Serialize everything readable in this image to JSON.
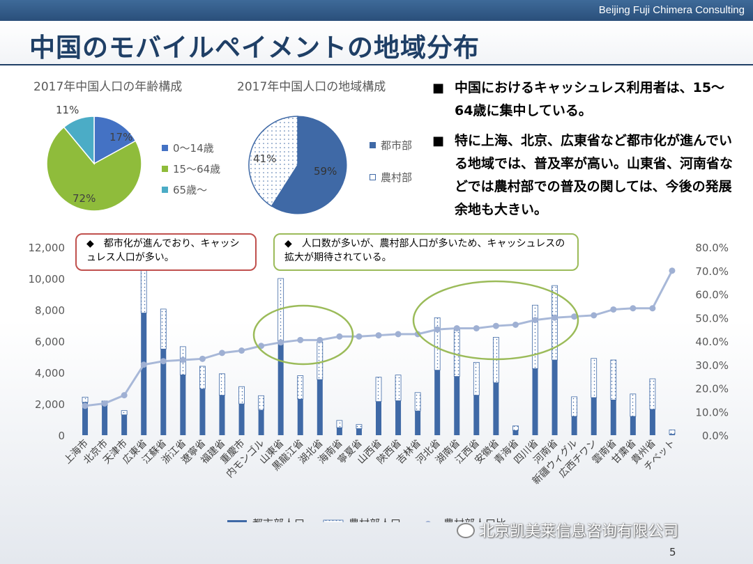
{
  "header": {
    "brand": "Beijing Fuji Chimera Consulting",
    "title": "中国のモバイルペイメントの地域分布"
  },
  "pie_age": {
    "title": "2017年中国人口の年齢構成",
    "slices": [
      {
        "label": "0～14歳",
        "value": 17,
        "text": "17%",
        "color": "#4472c4"
      },
      {
        "label": "15～64歳",
        "value": 72,
        "text": "72%",
        "color": "#8fbc3b"
      },
      {
        "label": "65歳～",
        "value": 11,
        "text": "11%",
        "color": "#4bacc6"
      }
    ]
  },
  "pie_region": {
    "title": "2017年中国人口の地域構成",
    "slices": [
      {
        "label": "都市部",
        "value": 59,
        "text": "59%",
        "color": "#3f69a6"
      },
      {
        "label": "農村部",
        "value": 41,
        "text": "41%",
        "color": "dotted"
      }
    ]
  },
  "bullets": [
    {
      "marker": "■",
      "text": "中国におけるキャッシュレス利用者は、15～64歳に集中している。"
    },
    {
      "marker": "■",
      "text": "特に上海、北京、広東省など都市化が進んでいる地域では、普及率が高い。山東省、河南省などでは農村部での普及の関しては、今後の発展余地も大きい。"
    }
  ],
  "callouts": [
    {
      "marker": "◆",
      "text": "都市化が進んでおり、キャッシュレス人口が多い。",
      "color": "#c0504d"
    },
    {
      "marker": "◆",
      "text": "人口数が多いが、農村部人口が多いため、キャッシュレスの拡大が期待されている。",
      "color": "#9bbb59"
    }
  ],
  "chart_data": {
    "type": "bar",
    "categories": [
      "上海市",
      "北京市",
      "天津市",
      "広東省",
      "江蘇省",
      "浙江省",
      "遼寧省",
      "福建省",
      "重慶市",
      "内モンゴル",
      "山東省",
      "黒龍江省",
      "湖北省",
      "海南省",
      "寧夏省",
      "山西省",
      "陝西省",
      "吉林省",
      "河北省",
      "湖南省",
      "江西省",
      "安徽省",
      "青海省",
      "四川省",
      "河南省",
      "新疆ウィグル",
      "広西チワン",
      "雲南省",
      "甘粛省",
      "貴州省",
      "チベット"
    ],
    "series": [
      {
        "name": "都市部人口",
        "kind": "bar-stack",
        "color": "#3f69a6",
        "values": [
          2100,
          1900,
          1300,
          7800,
          5500,
          3850,
          2950,
          2550,
          2000,
          1600,
          6000,
          2300,
          3550,
          480,
          420,
          2150,
          2200,
          1550,
          4150,
          3750,
          2550,
          3350,
          300,
          4250,
          4800,
          1200,
          2400,
          2250,
          1200,
          1650,
          60
        ]
      },
      {
        "name": "農村部人口",
        "kind": "bar-stack",
        "color": "dotted",
        "values": [
          330,
          280,
          270,
          3300,
          2550,
          1800,
          1450,
          1370,
          1100,
          920,
          4000,
          1500,
          2400,
          460,
          260,
          1550,
          1640,
          1170,
          3350,
          3050,
          2100,
          2900,
          290,
          4050,
          4750,
          1250,
          2500,
          2550,
          1430,
          1950,
          280
        ]
      },
      {
        "name": "農村部人口比",
        "kind": "line",
        "axis": "right",
        "color": "#a8b8d8",
        "values": [
          12.5,
          13.5,
          17.0,
          30.0,
          31.5,
          32.0,
          32.5,
          35.0,
          36.0,
          38.0,
          39.5,
          40.5,
          40.5,
          42.0,
          42.0,
          42.5,
          43.0,
          43.0,
          45.0,
          45.5,
          45.5,
          46.5,
          47.0,
          49.0,
          50.0,
          50.5,
          51.0,
          53.5,
          54.0,
          54.0,
          70.0
        ]
      }
    ],
    "y_left": {
      "min": 0,
      "max": 12000,
      "ticks": [
        "0",
        "2,000",
        "4,000",
        "6,000",
        "8,000",
        "10,000",
        "12,000"
      ]
    },
    "y_right": {
      "min": 0,
      "max": 80,
      "ticks": [
        "0.0%",
        "10.0%",
        "20.0%",
        "30.0%",
        "40.0%",
        "50.0%",
        "60.0%",
        "70.0%",
        "80.0%"
      ]
    },
    "legend": [
      {
        "label": "都市部人口"
      },
      {
        "label": "農村部人口"
      },
      {
        "label": "農村部人口比"
      }
    ],
    "legend_position": "bottom",
    "grid": false
  },
  "watermark": "北京凯美莱信息咨询有限公司",
  "page_number": "5"
}
